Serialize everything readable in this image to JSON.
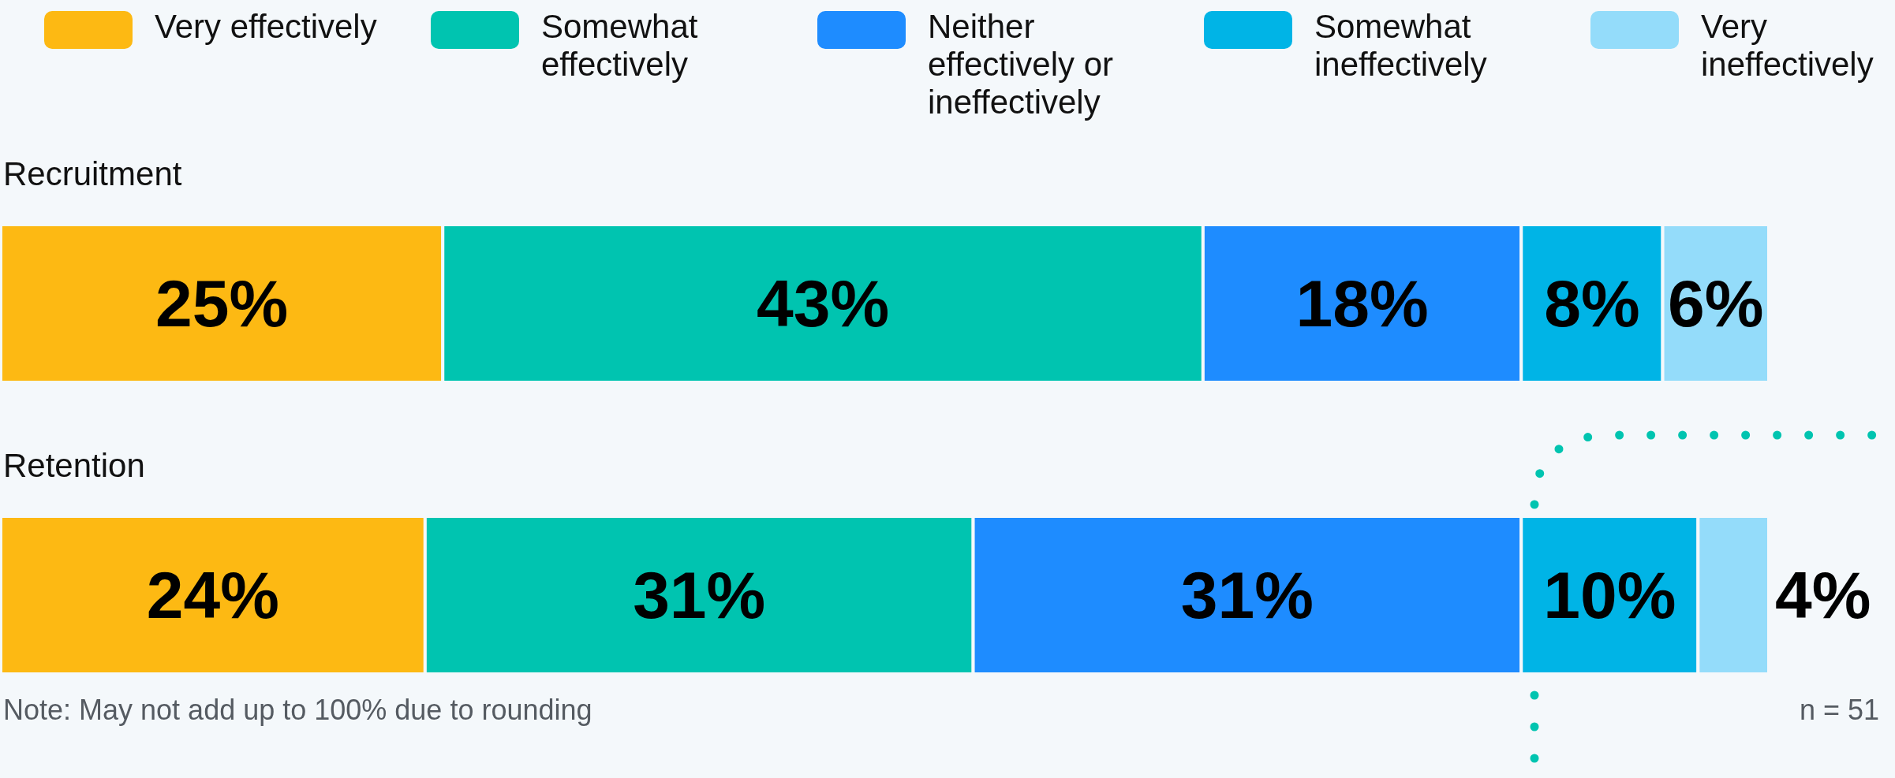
{
  "chart_data": {
    "type": "bar",
    "orientation": "horizontal",
    "stacked": true,
    "categories": [
      "Recruitment",
      "Retention"
    ],
    "series": [
      {
        "name": "Very effectively",
        "color": "#fdb913",
        "values": [
          25,
          24
        ],
        "value_labels": [
          "25%",
          "24%"
        ]
      },
      {
        "name": "Somewhat effectively",
        "color": "#00c4b0",
        "values": [
          43,
          31
        ],
        "value_labels": [
          "43%",
          "31%"
        ]
      },
      {
        "name": "Neither effectively or ineffectively",
        "color": "#1e8cff",
        "values": [
          18,
          31
        ],
        "value_labels": [
          "18%",
          "31%"
        ]
      },
      {
        "name": "Somewhat ineffectively",
        "color": "#00b4e6",
        "values": [
          8,
          10
        ],
        "value_labels": [
          "8%",
          "10%"
        ]
      },
      {
        "name": "Very ineffectively",
        "color": "#94dcfa",
        "values": [
          6,
          4
        ],
        "value_labels": [
          "6%",
          "4%"
        ]
      }
    ],
    "legend": "top",
    "annotations": [
      "Note: May not add up to 100% due to rounding",
      "n = 51"
    ]
  }
}
